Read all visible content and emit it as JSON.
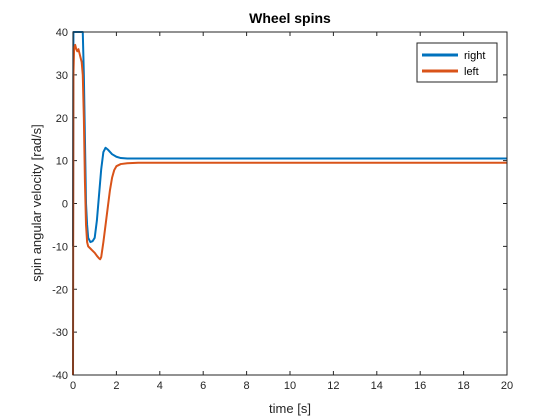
{
  "chart_data": {
    "type": "line",
    "title": "Wheel spins",
    "xlabel": "time [s]",
    "ylabel": "spin angular velocity [rad/s]",
    "xlim": [
      0,
      20
    ],
    "ylim": [
      -40,
      40
    ],
    "xticks": [
      0,
      2,
      4,
      6,
      8,
      10,
      12,
      14,
      16,
      18,
      20
    ],
    "yticks": [
      -40,
      -30,
      -20,
      -10,
      0,
      10,
      20,
      30,
      40
    ],
    "xtick_labels": [
      "0",
      "2",
      "4",
      "6",
      "8",
      "10",
      "12",
      "14",
      "16",
      "18",
      "20"
    ],
    "ytick_labels": [
      "-40",
      "-30",
      "-20",
      "-10",
      "0",
      "10",
      "20",
      "30",
      "40"
    ],
    "grid": false,
    "legend_position": "top-right",
    "series": [
      {
        "name": "right",
        "color": "#0072BD",
        "points": [
          [
            0,
            -10
          ],
          [
            0.02,
            40
          ],
          [
            0.1,
            40
          ],
          [
            0.2,
            40
          ],
          [
            0.3,
            40
          ],
          [
            0.4,
            40
          ],
          [
            0.45,
            40
          ],
          [
            0.5,
            30
          ],
          [
            0.55,
            15
          ],
          [
            0.6,
            0
          ],
          [
            0.65,
            -5
          ],
          [
            0.7,
            -8
          ],
          [
            0.8,
            -9
          ],
          [
            0.9,
            -8.8
          ],
          [
            1.0,
            -8
          ],
          [
            1.1,
            -4
          ],
          [
            1.2,
            2
          ],
          [
            1.3,
            8
          ],
          [
            1.4,
            12
          ],
          [
            1.5,
            13
          ],
          [
            1.6,
            12.6
          ],
          [
            1.8,
            11.5
          ],
          [
            2.0,
            10.9
          ],
          [
            2.2,
            10.6
          ],
          [
            2.5,
            10.5
          ],
          [
            3,
            10.5
          ],
          [
            5,
            10.5
          ],
          [
            10,
            10.5
          ],
          [
            15,
            10.5
          ],
          [
            20,
            10.5
          ]
        ]
      },
      {
        "name": "left",
        "color": "#D95319",
        "points": [
          [
            0,
            -40
          ],
          [
            0.02,
            30
          ],
          [
            0.05,
            36
          ],
          [
            0.1,
            37
          ],
          [
            0.15,
            36
          ],
          [
            0.2,
            35.5
          ],
          [
            0.25,
            36
          ],
          [
            0.3,
            35
          ],
          [
            0.35,
            34
          ],
          [
            0.4,
            33
          ],
          [
            0.45,
            30
          ],
          [
            0.5,
            20
          ],
          [
            0.55,
            5
          ],
          [
            0.6,
            -5
          ],
          [
            0.65,
            -9
          ],
          [
            0.7,
            -10
          ],
          [
            0.8,
            -10.5
          ],
          [
            0.9,
            -11
          ],
          [
            1.0,
            -11.5
          ],
          [
            1.1,
            -12.2
          ],
          [
            1.2,
            -12.8
          ],
          [
            1.25,
            -13
          ],
          [
            1.3,
            -12.5
          ],
          [
            1.4,
            -9
          ],
          [
            1.5,
            -5
          ],
          [
            1.6,
            -1
          ],
          [
            1.7,
            3
          ],
          [
            1.8,
            6
          ],
          [
            1.9,
            7.8
          ],
          [
            2.0,
            8.7
          ],
          [
            2.2,
            9.2
          ],
          [
            2.5,
            9.4
          ],
          [
            3,
            9.5
          ],
          [
            5,
            9.5
          ],
          [
            10,
            9.5
          ],
          [
            15,
            9.5
          ],
          [
            20,
            9.5
          ]
        ]
      }
    ]
  }
}
